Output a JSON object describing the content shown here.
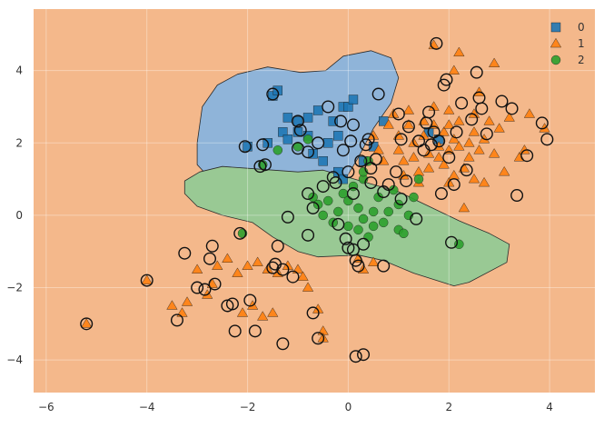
{
  "chart_data": {
    "type": "scatter",
    "title": "",
    "xlabel": "",
    "ylabel": "",
    "xlim": [
      -6.25,
      4.9
    ],
    "ylim": [
      -4.9,
      5.7
    ],
    "xticks": [
      -6,
      -4,
      -2,
      0,
      2,
      4
    ],
    "yticks": [
      -4,
      -2,
      0,
      2,
      4
    ],
    "grid": true,
    "legend_position": "top-right",
    "background_region_class": "1",
    "colors": {
      "0": "#1f77b4",
      "1": "#ff7f0e",
      "2": "#2ca02c",
      "region_0": "#8fb4d9",
      "region_1": "#f4b88b",
      "region_2": "#99c994",
      "grid": "#f7cfae",
      "axis_text": "#333333"
    },
    "regions": [
      {
        "class": "0",
        "polygon": [
          [
            -3.0,
            2.0
          ],
          [
            -2.9,
            3.0
          ],
          [
            -2.6,
            3.6
          ],
          [
            -2.2,
            3.9
          ],
          [
            -1.6,
            4.1
          ],
          [
            -0.95,
            3.95
          ],
          [
            -0.45,
            4.0
          ],
          [
            -0.1,
            4.4
          ],
          [
            0.45,
            4.55
          ],
          [
            0.85,
            4.35
          ],
          [
            1.0,
            3.8
          ],
          [
            0.85,
            3.1
          ],
          [
            0.5,
            2.4
          ],
          [
            0.2,
            1.6
          ],
          [
            -0.1,
            0.9
          ],
          [
            -0.4,
            0.5
          ],
          [
            -0.9,
            0.3
          ],
          [
            -1.4,
            0.1
          ],
          [
            -1.8,
            0.05
          ],
          [
            -2.15,
            0.1
          ],
          [
            -2.25,
            0.5
          ],
          [
            -2.45,
            1.05
          ],
          [
            -2.8,
            1.1
          ],
          [
            -3.0,
            1.4
          ]
        ]
      },
      {
        "class": "2",
        "polygon": [
          [
            -3.25,
            0.95
          ],
          [
            -2.95,
            1.2
          ],
          [
            -2.5,
            1.35
          ],
          [
            -2.0,
            1.3
          ],
          [
            -1.5,
            1.25
          ],
          [
            -1.0,
            1.2
          ],
          [
            -0.5,
            1.25
          ],
          [
            0.0,
            1.05
          ],
          [
            0.5,
            0.85
          ],
          [
            1.0,
            0.65
          ],
          [
            1.6,
            0.25
          ],
          [
            2.2,
            -0.15
          ],
          [
            2.8,
            -0.5
          ],
          [
            3.2,
            -0.8
          ],
          [
            3.15,
            -1.3
          ],
          [
            2.4,
            -1.85
          ],
          [
            2.1,
            -1.95
          ],
          [
            1.3,
            -1.6
          ],
          [
            0.7,
            -1.25
          ],
          [
            0.2,
            -1.1
          ],
          [
            -0.6,
            -1.15
          ],
          [
            -1.0,
            -1.0
          ],
          [
            -1.5,
            -0.6
          ],
          [
            -1.9,
            -0.2
          ],
          [
            -2.5,
            0.0
          ],
          [
            -3.0,
            0.25
          ],
          [
            -3.25,
            0.6
          ]
        ]
      }
    ],
    "legend": [
      {
        "label": "0",
        "marker": "square"
      },
      {
        "label": "1",
        "marker": "triangle"
      },
      {
        "label": "2",
        "marker": "circle"
      }
    ],
    "series": [
      {
        "name": "0",
        "marker": "square",
        "points": [
          [
            -2.0,
            1.9
          ],
          [
            -1.6,
            2.0
          ],
          [
            -1.5,
            3.3
          ],
          [
            -1.4,
            3.45
          ],
          [
            -1.3,
            2.3
          ],
          [
            -1.2,
            2.1
          ],
          [
            -1.2,
            2.7
          ],
          [
            -1.0,
            2.3
          ],
          [
            -1.0,
            2.6
          ],
          [
            -0.8,
            2.7
          ],
          [
            -0.8,
            2.2
          ],
          [
            -0.7,
            1.7
          ],
          [
            -0.6,
            2.9
          ],
          [
            -0.5,
            1.5
          ],
          [
            -0.4,
            2.0
          ],
          [
            -0.3,
            2.6
          ],
          [
            -0.2,
            2.2
          ],
          [
            -0.1,
            3.0
          ],
          [
            0.0,
            3.0
          ],
          [
            0.1,
            3.2
          ],
          [
            -0.2,
            1.2
          ],
          [
            -0.1,
            1.0
          ],
          [
            0.3,
            1.5
          ],
          [
            0.5,
            1.9
          ],
          [
            0.7,
            2.6
          ],
          [
            1.6,
            2.3
          ],
          [
            1.8,
            2.1
          ]
        ]
      },
      {
        "name": "1",
        "marker": "triangle",
        "points": [
          [
            -5.2,
            -3.0
          ],
          [
            -4.0,
            -1.8
          ],
          [
            -3.5,
            -2.5
          ],
          [
            -3.3,
            -2.7
          ],
          [
            -3.2,
            -2.4
          ],
          [
            -3.0,
            -1.5
          ],
          [
            -2.8,
            -2.2
          ],
          [
            -2.7,
            -1.9
          ],
          [
            -2.6,
            -1.4
          ],
          [
            -2.4,
            -1.2
          ],
          [
            -2.2,
            -1.6
          ],
          [
            -2.1,
            -2.7
          ],
          [
            -2.0,
            -1.4
          ],
          [
            -1.9,
            -2.5
          ],
          [
            -1.8,
            -1.3
          ],
          [
            -1.7,
            -2.8
          ],
          [
            -1.6,
            -1.5
          ],
          [
            -1.5,
            -2.7
          ],
          [
            -1.4,
            -1.6
          ],
          [
            -1.2,
            -1.4
          ],
          [
            -1.0,
            -1.5
          ],
          [
            -0.9,
            -1.7
          ],
          [
            -0.8,
            -2.0
          ],
          [
            -0.6,
            -2.6
          ],
          [
            -0.5,
            -3.2
          ],
          [
            -0.5,
            -3.4
          ],
          [
            0.2,
            -1.2
          ],
          [
            0.3,
            -1.5
          ],
          [
            0.5,
            -1.3
          ],
          [
            0.5,
            2.2
          ],
          [
            0.6,
            1.8
          ],
          [
            0.7,
            1.5
          ],
          [
            0.8,
            2.5
          ],
          [
            0.9,
            2.8
          ],
          [
            1.0,
            2.2
          ],
          [
            1.0,
            1.8
          ],
          [
            1.1,
            1.5
          ],
          [
            1.1,
            1.1
          ],
          [
            1.2,
            2.9
          ],
          [
            1.2,
            2.5
          ],
          [
            1.3,
            2.0
          ],
          [
            1.3,
            1.6
          ],
          [
            1.4,
            1.2
          ],
          [
            1.4,
            0.9
          ],
          [
            1.5,
            2.6
          ],
          [
            1.5,
            2.2
          ],
          [
            1.6,
            1.7
          ],
          [
            1.6,
            1.3
          ],
          [
            1.7,
            3.0
          ],
          [
            1.7,
            2.5
          ],
          [
            1.8,
            1.9
          ],
          [
            1.8,
            1.6
          ],
          [
            1.9,
            2.3
          ],
          [
            1.9,
            1.4
          ],
          [
            2.0,
            2.9
          ],
          [
            2.0,
            2.5
          ],
          [
            2.0,
            1.8
          ],
          [
            2.0,
            0.9
          ],
          [
            2.1,
            2.1
          ],
          [
            2.1,
            1.1
          ],
          [
            2.2,
            2.6
          ],
          [
            2.2,
            1.9
          ],
          [
            2.3,
            1.3
          ],
          [
            2.3,
            0.2
          ],
          [
            2.4,
            2.0
          ],
          [
            2.4,
            1.6
          ],
          [
            2.5,
            2.8
          ],
          [
            2.5,
            2.3
          ],
          [
            2.5,
            1.0
          ],
          [
            2.6,
            1.8
          ],
          [
            2.7,
            2.1
          ],
          [
            2.7,
            0.9
          ],
          [
            2.8,
            2.6
          ],
          [
            2.9,
            1.7
          ],
          [
            3.0,
            2.4
          ],
          [
            3.1,
            1.2
          ],
          [
            3.2,
            2.7
          ],
          [
            3.4,
            1.6
          ],
          [
            3.5,
            1.8
          ],
          [
            3.6,
            2.8
          ],
          [
            3.9,
            2.4
          ],
          [
            2.9,
            4.2
          ],
          [
            2.2,
            4.5
          ],
          [
            1.7,
            4.7
          ],
          [
            2.1,
            4.0
          ],
          [
            2.6,
            3.4
          ]
        ]
      },
      {
        "name": "2",
        "marker": "circle",
        "points": [
          [
            -2.1,
            -0.5
          ],
          [
            -1.7,
            1.4
          ],
          [
            -1.4,
            1.8
          ],
          [
            -1.0,
            1.9
          ],
          [
            -0.8,
            2.1
          ],
          [
            -0.7,
            0.5
          ],
          [
            -0.6,
            0.3
          ],
          [
            -0.5,
            0.0
          ],
          [
            -0.4,
            0.4
          ],
          [
            -0.3,
            -0.2
          ],
          [
            -0.2,
            0.1
          ],
          [
            -0.1,
            0.6
          ],
          [
            0.0,
            0.4
          ],
          [
            0.0,
            -0.3
          ],
          [
            0.1,
            0.8
          ],
          [
            0.2,
            0.2
          ],
          [
            0.2,
            -0.4
          ],
          [
            0.3,
            1.0
          ],
          [
            0.3,
            -0.1
          ],
          [
            0.4,
            -0.6
          ],
          [
            0.5,
            0.1
          ],
          [
            0.5,
            -0.3
          ],
          [
            0.6,
            0.5
          ],
          [
            0.7,
            -0.2
          ],
          [
            0.8,
            0.1
          ],
          [
            0.9,
            0.7
          ],
          [
            1.0,
            -0.4
          ],
          [
            1.0,
            0.3
          ],
          [
            1.1,
            -0.5
          ],
          [
            1.2,
            0.0
          ],
          [
            1.3,
            0.5
          ],
          [
            1.4,
            1.0
          ],
          [
            0.4,
            1.5
          ],
          [
            0.3,
            1.2
          ],
          [
            2.2,
            -0.8
          ]
        ]
      }
    ],
    "circled_points": [
      [
        -5.2,
        -3.0
      ],
      [
        -4.0,
        -1.8
      ],
      [
        -3.4,
        -2.9
      ],
      [
        -3.25,
        -1.05
      ],
      [
        -2.85,
        -2.05
      ],
      [
        -2.75,
        -1.2
      ],
      [
        -2.7,
        -0.85
      ],
      [
        -2.65,
        -1.9
      ],
      [
        -2.3,
        -2.45
      ],
      [
        -2.25,
        -3.2
      ],
      [
        -2.15,
        -0.5
      ],
      [
        -2.05,
        1.9
      ],
      [
        -1.95,
        -2.35
      ],
      [
        -1.85,
        -3.2
      ],
      [
        -1.75,
        1.35
      ],
      [
        -1.7,
        1.95
      ],
      [
        -1.65,
        1.4
      ],
      [
        -1.5,
        3.35
      ],
      [
        -1.5,
        -1.45
      ],
      [
        -1.45,
        -1.35
      ],
      [
        -1.4,
        -0.85
      ],
      [
        -1.3,
        -3.55
      ],
      [
        -1.2,
        -0.05
      ],
      [
        -1.1,
        -1.7
      ],
      [
        -1.0,
        1.85
      ],
      [
        -1.0,
        2.6
      ],
      [
        -0.95,
        2.35
      ],
      [
        -0.8,
        -0.55
      ],
      [
        -0.8,
        1.75
      ],
      [
        -0.8,
        0.6
      ],
      [
        -0.7,
        0.2
      ],
      [
        -0.7,
        -2.7
      ],
      [
        -0.6,
        2.0
      ],
      [
        -0.5,
        0.8
      ],
      [
        -0.4,
        3.0
      ],
      [
        -0.3,
        1.05
      ],
      [
        -0.25,
        0.9
      ],
      [
        -0.2,
        -0.25
      ],
      [
        -0.15,
        2.6
      ],
      [
        -0.1,
        1.8
      ],
      [
        -0.05,
        -0.65
      ],
      [
        0.0,
        -0.9
      ],
      [
        0.0,
        1.2
      ],
      [
        0.05,
        2.05
      ],
      [
        0.1,
        -0.95
      ],
      [
        0.1,
        0.6
      ],
      [
        0.1,
        2.5
      ],
      [
        0.15,
        -1.25
      ],
      [
        0.15,
        -3.9
      ],
      [
        0.2,
        -1.4
      ],
      [
        0.25,
        1.5
      ],
      [
        0.3,
        -0.8
      ],
      [
        0.3,
        -3.85
      ],
      [
        0.35,
        1.95
      ],
      [
        0.4,
        2.1
      ],
      [
        0.45,
        0.9
      ],
      [
        0.45,
        1.3
      ],
      [
        0.55,
        1.55
      ],
      [
        0.6,
        3.35
      ],
      [
        0.7,
        0.65
      ],
      [
        0.8,
        0.85
      ],
      [
        0.95,
        1.2
      ],
      [
        1.0,
        2.8
      ],
      [
        1.05,
        2.1
      ],
      [
        1.05,
        0.45
      ],
      [
        1.15,
        0.95
      ],
      [
        1.2,
        2.45
      ],
      [
        1.35,
        -0.1
      ],
      [
        1.4,
        2.05
      ],
      [
        1.5,
        1.8
      ],
      [
        1.55,
        2.55
      ],
      [
        1.6,
        2.85
      ],
      [
        1.65,
        1.95
      ],
      [
        1.7,
        2.3
      ],
      [
        1.8,
        2.05
      ],
      [
        1.85,
        0.6
      ],
      [
        1.9,
        3.6
      ],
      [
        1.95,
        3.75
      ],
      [
        2.0,
        1.6
      ],
      [
        2.05,
        -0.75
      ],
      [
        2.1,
        0.85
      ],
      [
        2.15,
        2.3
      ],
      [
        2.25,
        3.1
      ],
      [
        2.35,
        1.25
      ],
      [
        2.45,
        2.65
      ],
      [
        2.55,
        3.95
      ],
      [
        2.6,
        3.25
      ],
      [
        2.65,
        2.95
      ],
      [
        2.75,
        2.25
      ],
      [
        3.05,
        3.15
      ],
      [
        3.25,
        2.95
      ],
      [
        3.35,
        0.55
      ],
      [
        3.55,
        1.65
      ],
      [
        3.85,
        2.55
      ],
      [
        3.95,
        2.1
      ]
    ],
    "circled_extra": [
      [
        -3.0,
        -2.0
      ],
      [
        -2.4,
        -2.5
      ],
      [
        -1.3,
        -1.5
      ],
      [
        -0.6,
        -3.4
      ],
      [
        0.7,
        -1.4
      ],
      [
        1.75,
        4.75
      ]
    ]
  }
}
